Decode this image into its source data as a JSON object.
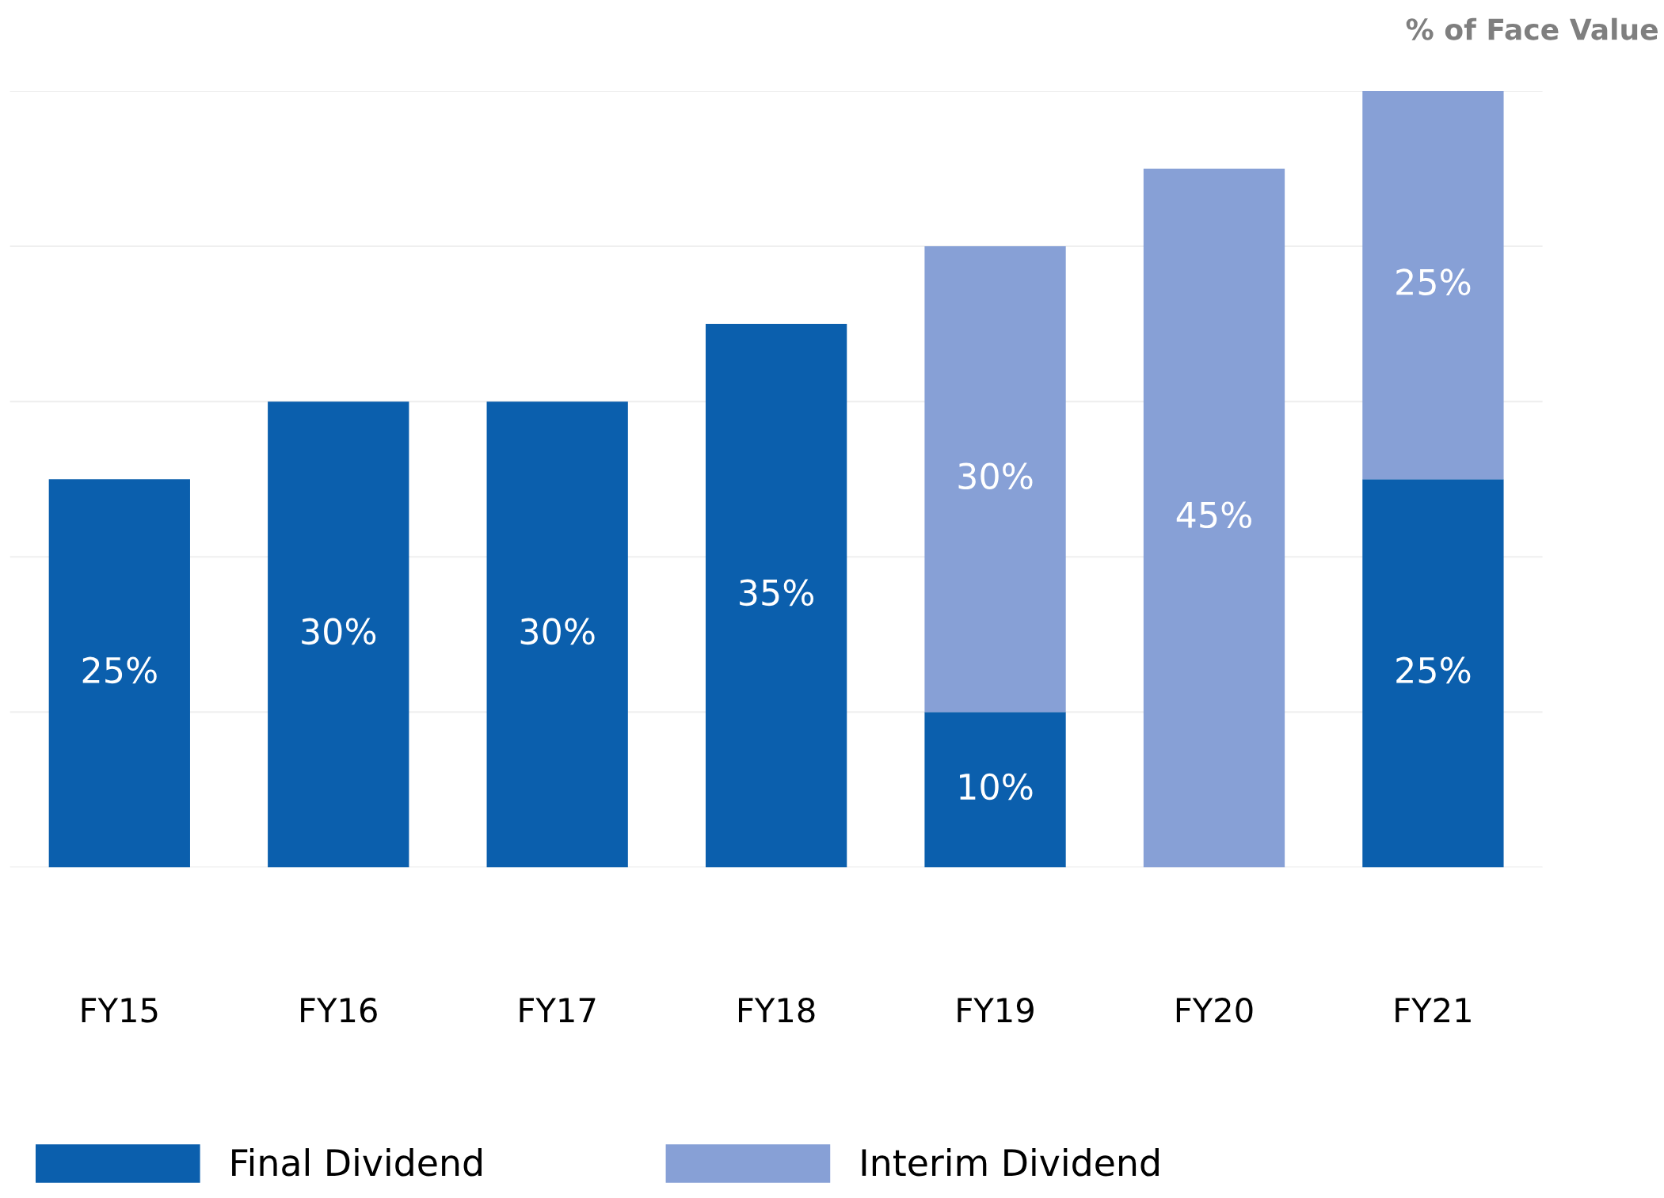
{
  "chart_data": {
    "type": "bar",
    "stacked": true,
    "ylabel": "% of Face Value",
    "categories": [
      "FY15",
      "FY16",
      "FY17",
      "FY18",
      "FY19",
      "FY20",
      "FY21"
    ],
    "series": [
      {
        "name": "Final Dividend",
        "color": "#0b5fad",
        "values": [
          25,
          30,
          30,
          35,
          10,
          null,
          25
        ],
        "value_labels": [
          "25%",
          "30%",
          "30%",
          "35%",
          "10%",
          null,
          "25%"
        ]
      },
      {
        "name": "Interim Dividend",
        "color": "#87a0d6",
        "values": [
          null,
          null,
          null,
          null,
          30,
          45,
          25
        ],
        "value_labels": [
          null,
          null,
          null,
          null,
          "30%",
          "45%",
          "25%"
        ]
      }
    ],
    "tick_labels": "x",
    "grid": "y",
    "legend": "bottom"
  }
}
